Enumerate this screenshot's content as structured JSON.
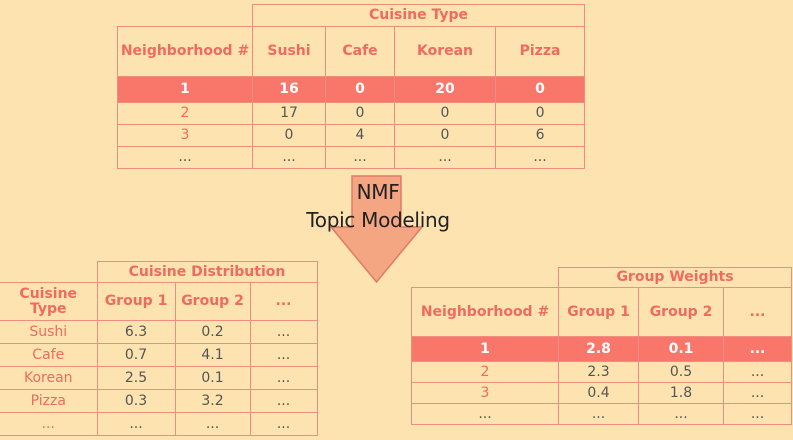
{
  "top_table": {
    "super_header": "Cuisine Type",
    "row_header": "Neighborhood #",
    "columns": [
      "Sushi",
      "Cafe",
      "Korean",
      "Pizza"
    ],
    "rows": [
      {
        "label": "1",
        "values": [
          "16",
          "0",
          "20",
          "0"
        ],
        "highlight": true
      },
      {
        "label": "2",
        "values": [
          "17",
          "0",
          "0",
          "0"
        ]
      },
      {
        "label": "3",
        "values": [
          "0",
          "4",
          "0",
          "6"
        ]
      },
      {
        "label": "...",
        "values": [
          "...",
          "...",
          "...",
          "..."
        ]
      }
    ]
  },
  "arrow": {
    "line1": "NMF",
    "line2": "Topic Modeling",
    "fill": "#f4a582",
    "stroke": "#e07a68"
  },
  "left_table": {
    "super_header": "Cuisine Distribution",
    "row_header": "Cuisine Type",
    "columns": [
      "Group 1",
      "Group 2",
      "..."
    ],
    "rows": [
      {
        "label": "Sushi",
        "values": [
          "6.3",
          "0.2",
          "..."
        ]
      },
      {
        "label": "Cafe",
        "values": [
          "0.7",
          "4.1",
          "..."
        ]
      },
      {
        "label": "Korean",
        "values": [
          "2.5",
          "0.1",
          "..."
        ]
      },
      {
        "label": "Pizza",
        "values": [
          "0.3",
          "3.2",
          "..."
        ]
      },
      {
        "label": "...",
        "values": [
          "...",
          "...",
          "..."
        ]
      }
    ]
  },
  "right_table": {
    "super_header": "Group Weights",
    "row_header": "Neighborhood #",
    "columns": [
      "Group 1",
      "Group 2",
      "..."
    ],
    "rows": [
      {
        "label": "1",
        "values": [
          "2.8",
          "0.1",
          "..."
        ],
        "highlight": true
      },
      {
        "label": "2",
        "values": [
          "2.3",
          "0.5",
          "..."
        ]
      },
      {
        "label": "3",
        "values": [
          "0.4",
          "1.8",
          "..."
        ]
      },
      {
        "label": "...",
        "values": [
          "...",
          "...",
          "..."
        ]
      }
    ]
  },
  "colors": {
    "background": "#fde3b0",
    "border": "#ef8e80",
    "header_text": "#f06b5f",
    "highlight_row": "#f9766b"
  }
}
